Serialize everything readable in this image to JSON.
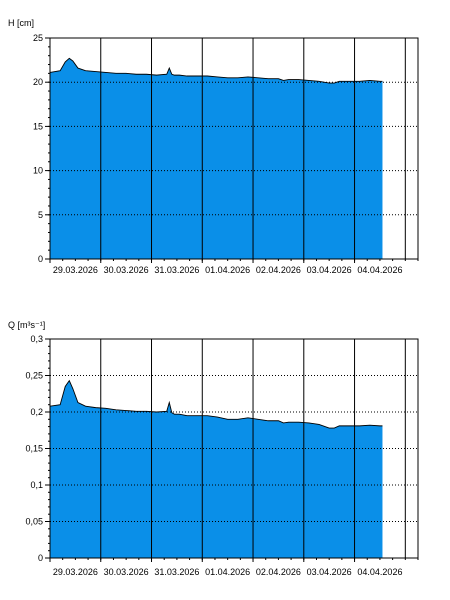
{
  "colors": {
    "area": "#0A8FE8",
    "area_outline": "#000000",
    "grid": "#000000",
    "background": "#FFFFFF"
  },
  "chart_data": [
    {
      "type": "area",
      "title": "",
      "ylabel": "H [cm]",
      "xlabel": "",
      "ylim": [
        0,
        25
      ],
      "yticks": [
        0,
        5,
        10,
        15,
        20,
        25
      ],
      "ytick_labels": [
        "0",
        "5",
        "10",
        "15",
        "20",
        "25"
      ],
      "xlim": [
        0,
        7.25
      ],
      "xtick_labels": [
        "29.03.2026",
        "30.03.2026",
        "31.03.2026",
        "01.04.2026",
        "02.04.2026",
        "03.04.2026",
        "04.04.2026"
      ],
      "grid": "dotted horizontal, solid vertical at day boundaries",
      "series": [
        {
          "x": [
            0,
            0.2,
            0.3,
            0.38,
            0.45,
            0.55,
            0.7,
            0.9,
            1.1,
            1.3,
            1.5,
            1.7,
            1.9,
            2.1,
            2.3,
            2.35,
            2.4,
            2.45,
            2.55,
            2.7,
            2.9,
            3.1,
            3.3,
            3.5,
            3.7,
            3.9,
            4.1,
            4.3,
            4.5,
            4.6,
            4.7,
            4.9,
            5.1,
            5.3,
            5.5,
            5.6,
            5.7,
            5.9,
            6.1,
            6.3,
            6.5,
            6.55
          ],
          "values": [
            21.1,
            21.3,
            22.3,
            22.7,
            22.4,
            21.6,
            21.3,
            21.2,
            21.1,
            21.0,
            21.0,
            20.9,
            20.9,
            20.8,
            20.9,
            21.6,
            20.9,
            20.8,
            20.8,
            20.7,
            20.7,
            20.7,
            20.6,
            20.5,
            20.5,
            20.6,
            20.5,
            20.4,
            20.4,
            20.2,
            20.3,
            20.3,
            20.2,
            20.1,
            19.9,
            19.9,
            20.1,
            20.1,
            20.1,
            20.2,
            20.1,
            20.1
          ]
        }
      ]
    },
    {
      "type": "area",
      "title": "",
      "ylabel": "Q [m³s⁻¹]",
      "xlabel": "",
      "ylim": [
        0,
        0.3
      ],
      "yticks": [
        0,
        0.05,
        0.1,
        0.15,
        0.2,
        0.25,
        0.3
      ],
      "ytick_labels": [
        "0",
        "0,05",
        "0,1",
        "0,15",
        "0,2",
        "0,25",
        "0,3"
      ],
      "xlim": [
        0,
        7.25
      ],
      "xtick_labels": [
        "29.03.2026",
        "30.03.2026",
        "31.03.2026",
        "01.04.2026",
        "02.04.2026",
        "03.04.2026",
        "04.04.2026"
      ],
      "grid": "dotted horizontal, solid vertical at day boundaries",
      "series": [
        {
          "x": [
            0,
            0.2,
            0.3,
            0.38,
            0.45,
            0.55,
            0.7,
            0.9,
            1.1,
            1.3,
            1.5,
            1.7,
            1.9,
            2.1,
            2.3,
            2.35,
            2.4,
            2.45,
            2.55,
            2.7,
            2.9,
            3.1,
            3.3,
            3.5,
            3.7,
            3.9,
            4.1,
            4.3,
            4.5,
            4.6,
            4.7,
            4.9,
            5.1,
            5.3,
            5.5,
            5.6,
            5.7,
            5.9,
            6.1,
            6.3,
            6.5,
            6.55
          ],
          "values": [
            0.208,
            0.21,
            0.235,
            0.243,
            0.232,
            0.213,
            0.208,
            0.206,
            0.205,
            0.203,
            0.202,
            0.201,
            0.201,
            0.2,
            0.201,
            0.213,
            0.199,
            0.197,
            0.197,
            0.195,
            0.195,
            0.195,
            0.193,
            0.19,
            0.19,
            0.192,
            0.19,
            0.188,
            0.188,
            0.185,
            0.186,
            0.186,
            0.185,
            0.183,
            0.178,
            0.178,
            0.181,
            0.181,
            0.181,
            0.182,
            0.181,
            0.181
          ]
        }
      ]
    }
  ]
}
